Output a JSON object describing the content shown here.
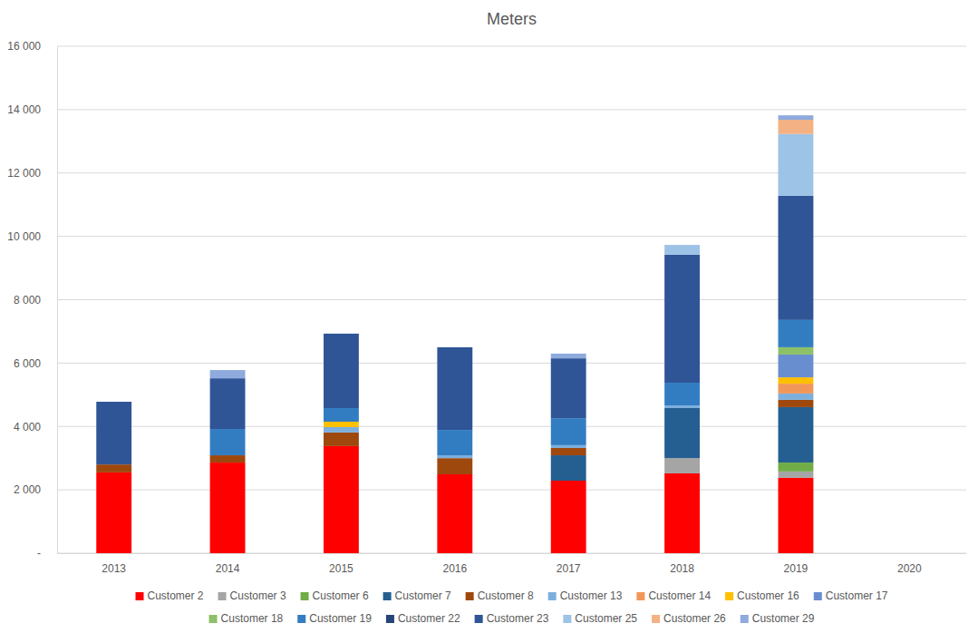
{
  "chart_data": {
    "type": "bar",
    "title": "Meters",
    "stacked": true,
    "grid": true,
    "legend": "bottom",
    "categories": [
      "2013",
      "2014",
      "2015",
      "2016",
      "2017",
      "2018",
      "2019",
      "2020"
    ],
    "ylim": [
      0,
      16000
    ],
    "yticks": [
      {
        "value": 0,
        "label": "-"
      },
      {
        "value": 2000,
        "label": "2 000"
      },
      {
        "value": 4000,
        "label": "4 000"
      },
      {
        "value": 6000,
        "label": "6 000"
      },
      {
        "value": 8000,
        "label": "8 000"
      },
      {
        "value": 10000,
        "label": "10 000"
      },
      {
        "value": 12000,
        "label": "12 000"
      },
      {
        "value": 14000,
        "label": "14 000"
      },
      {
        "value": 16000,
        "label": "16 000"
      }
    ],
    "series": [
      {
        "name": "Customer 2",
        "color": "#ff0000",
        "values": [
          2550,
          2860,
          3380,
          2490,
          2290,
          2520,
          2380,
          null
        ]
      },
      {
        "name": "Customer 3",
        "color": "#a5a5a5",
        "values": [
          null,
          null,
          null,
          null,
          null,
          480,
          200,
          null
        ]
      },
      {
        "name": "Customer 6",
        "color": "#70ad47",
        "values": [
          null,
          null,
          null,
          null,
          null,
          null,
          280,
          null
        ]
      },
      {
        "name": "Customer 7",
        "color": "#255e91",
        "values": [
          null,
          null,
          null,
          null,
          800,
          1580,
          1750,
          null
        ]
      },
      {
        "name": "Customer 8",
        "color": "#9e480e",
        "values": [
          250,
          230,
          430,
          510,
          230,
          null,
          230,
          null
        ]
      },
      {
        "name": "Customer 13",
        "color": "#7cafdd",
        "values": [
          null,
          null,
          170,
          90,
          90,
          80,
          200,
          null
        ]
      },
      {
        "name": "Customer 14",
        "color": "#f1975a",
        "values": [
          null,
          null,
          null,
          null,
          null,
          null,
          310,
          null
        ]
      },
      {
        "name": "Customer 16",
        "color": "#ffc000",
        "values": [
          null,
          null,
          170,
          null,
          null,
          null,
          200,
          null
        ]
      },
      {
        "name": "Customer 17",
        "color": "#698ed0",
        "values": [
          null,
          null,
          null,
          null,
          null,
          null,
          720,
          null
        ]
      },
      {
        "name": "Customer 18",
        "color": "#8cc168",
        "values": [
          null,
          null,
          null,
          null,
          null,
          null,
          230,
          null
        ]
      },
      {
        "name": "Customer 19",
        "color": "#327dc2",
        "values": [
          null,
          830,
          430,
          800,
          850,
          720,
          860,
          null
        ]
      },
      {
        "name": "Customer 22",
        "color": "#264478",
        "values": [
          null,
          null,
          null,
          null,
          null,
          null,
          null,
          null
        ]
      },
      {
        "name": "Customer 23",
        "color": "#2f5597",
        "values": [
          1980,
          1600,
          2350,
          2610,
          1890,
          4040,
          3920,
          null
        ]
      },
      {
        "name": "Customer 25",
        "color": "#9dc3e6",
        "values": [
          null,
          null,
          null,
          null,
          null,
          310,
          1950,
          null
        ]
      },
      {
        "name": "Customer 26",
        "color": "#f4b183",
        "values": [
          null,
          null,
          null,
          null,
          null,
          null,
          450,
          null
        ]
      },
      {
        "name": "Customer 29",
        "color": "#8faadc",
        "values": [
          null,
          260,
          null,
          null,
          150,
          null,
          140,
          null
        ]
      }
    ]
  }
}
